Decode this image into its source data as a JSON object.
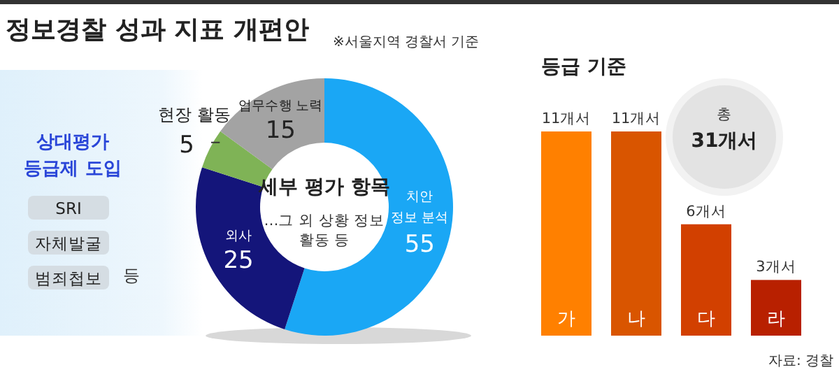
{
  "chart_data": [
    {
      "type": "other",
      "title": "정보경찰 성과 지표 개편안",
      "subtitle": "※서울지역 경찰서 기준",
      "annotations": [
        "상대평가\n등급제 도입",
        "SRI",
        "자체발굴",
        "범죄첩보",
        "등"
      ]
    },
    {
      "type": "donut",
      "categories": [
        "치안\n정보 분석",
        "외사",
        "현장 활동",
        "업무수행 노력"
      ],
      "values": [
        55,
        25,
        5,
        15
      ],
      "colors": [
        "#1aa7f5",
        "#14157a",
        "#7fb356",
        "#a3a3a3"
      ],
      "data_labels": true,
      "annotations": [
        "세부 평가 항목",
        "…그 외 상황 정보\n활동 등"
      ]
    },
    {
      "type": "bar",
      "title": "등급 기준",
      "categories": [
        "가",
        "나",
        "다",
        "라"
      ],
      "values": [
        11,
        11,
        6,
        3
      ],
      "colors": [
        "#ff8000",
        "#d95500",
        "#d24000",
        "#b82000"
      ],
      "value_labels": [
        "11개서",
        "11개서",
        "6개서",
        "3개서"
      ],
      "annotations": [
        "총",
        "31개서",
        "자료: 경찰"
      ]
    }
  ]
}
